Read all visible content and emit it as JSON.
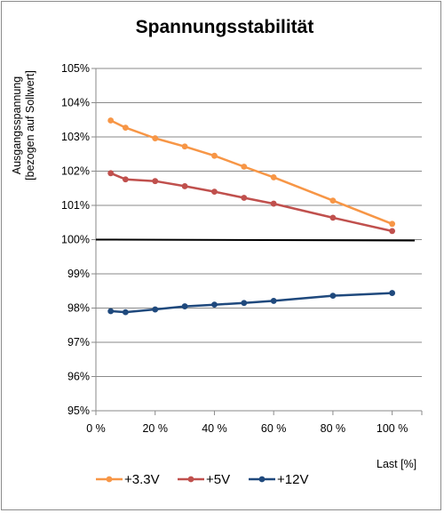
{
  "chart_data": {
    "type": "line",
    "title": "Spannungsstabilität",
    "xlabel": "Last [%]",
    "ylabel": [
      "Ausgangsspannung",
      "[bezogen auf Sollwert]"
    ],
    "xlim": [
      0,
      110
    ],
    "ylim": [
      95,
      105
    ],
    "x_ticks": [
      0,
      20,
      40,
      60,
      80,
      100
    ],
    "x_tick_labels": [
      "0 %",
      "20 %",
      "40 %",
      "60 %",
      "80 %",
      "100 %"
    ],
    "y_ticks": [
      95,
      96,
      97,
      98,
      99,
      100,
      101,
      102,
      103,
      104,
      105
    ],
    "y_tick_labels": [
      "95%",
      "96%",
      "97%",
      "98%",
      "99%",
      "100%",
      "101%",
      "102%",
      "103%",
      "104%",
      "105%"
    ],
    "grid": "horizontal",
    "legend_position": "bottom-left",
    "reference_line": {
      "y": 100,
      "color": "#000000"
    },
    "x": [
      5,
      10,
      20,
      30,
      40,
      50,
      60,
      80,
      100
    ],
    "series": [
      {
        "name": "+3.3V",
        "color": "#f79646",
        "values": [
          103.48,
          103.27,
          102.96,
          102.72,
          102.45,
          102.13,
          101.82,
          101.14,
          100.46
        ]
      },
      {
        "name": "+5V",
        "color": "#c0504d",
        "values": [
          101.94,
          101.76,
          101.71,
          101.56,
          101.4,
          101.22,
          101.05,
          100.64,
          100.25
        ]
      },
      {
        "name": "+12V",
        "color": "#1f497d",
        "values": [
          97.91,
          97.88,
          97.96,
          98.05,
          98.1,
          98.15,
          98.21,
          98.36,
          98.44
        ]
      }
    ]
  }
}
